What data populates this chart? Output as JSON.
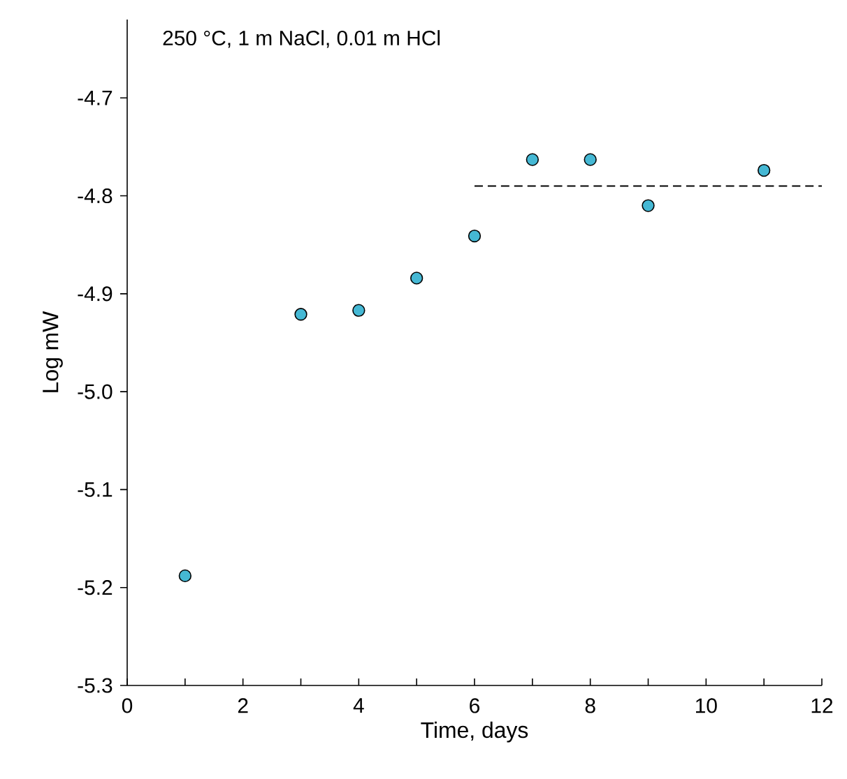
{
  "chart_data": {
    "type": "scatter",
    "xlabel": "Time, days",
    "ylabel": "Log mW",
    "annotations": [
      "250 °C, 1 m NaCl, 0.01 m HCl"
    ],
    "series": [
      {
        "color": "#45b8d4",
        "marker": "circle",
        "x": [
          1,
          3,
          4,
          5,
          6,
          7,
          8,
          9,
          11
        ],
        "values": [
          -5.188,
          -4.921,
          -4.917,
          -4.884,
          -4.841,
          -4.763,
          -4.763,
          -4.81,
          -4.774
        ]
      },
      {
        "type": "line",
        "color": "#000000",
        "line_style": "dashed",
        "marker": "none",
        "x": [
          6,
          12
        ],
        "values": [
          -4.79,
          -4.79
        ]
      }
    ],
    "xlim": [
      0,
      12
    ],
    "ylim": [
      -5.3,
      -4.62
    ],
    "xticks": [
      0,
      {
        "value": 1,
        "label": null
      },
      2,
      {
        "value": 3,
        "label": null
      },
      4,
      {
        "value": 5,
        "label": null
      },
      6,
      {
        "value": 7,
        "label": null
      },
      8,
      {
        "value": 9,
        "label": null
      },
      10,
      {
        "value": 11,
        "label": null
      },
      12
    ],
    "yticks": [
      -5.3,
      -5.2,
      -5.1,
      {
        "value": -5.0,
        "label": "-5.0"
      },
      -4.9,
      -4.8,
      -4.7
    ],
    "grid": false
  }
}
